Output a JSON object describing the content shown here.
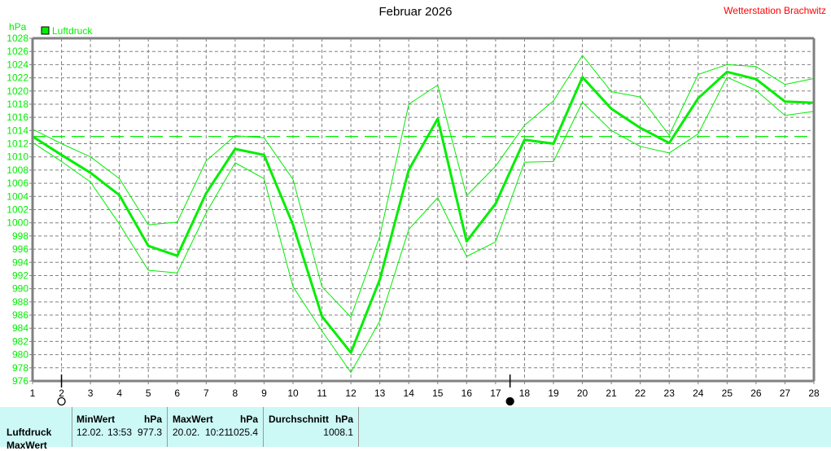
{
  "header": {
    "title": "Februar 2026",
    "station": "Wetterstation Brachwitz"
  },
  "colors": {
    "series": "#00ee00",
    "axis": "#808080",
    "grid": "#808080",
    "station": "#ff0000",
    "stats_bg": "#ccf8f6"
  },
  "chart_data": {
    "type": "line",
    "title": "Februar 2026",
    "xlabel": "",
    "ylabel": "hPa",
    "ylim": [
      976,
      1028
    ],
    "yticks": [
      976,
      978,
      980,
      982,
      984,
      986,
      988,
      990,
      992,
      994,
      996,
      998,
      1000,
      1002,
      1004,
      1006,
      1008,
      1010,
      1012,
      1014,
      1016,
      1018,
      1020,
      1022,
      1024,
      1026,
      1028
    ],
    "x": [
      1,
      2,
      3,
      4,
      5,
      6,
      7,
      8,
      9,
      10,
      11,
      12,
      13,
      14,
      15,
      16,
      17,
      18,
      19,
      20,
      21,
      22,
      23,
      24,
      25,
      26,
      27,
      28
    ],
    "legend": [
      "Luftdruck"
    ],
    "legend_position": "top-left",
    "grid": true,
    "reference_line": 1013.1,
    "series": [
      {
        "name": "Luftdruck",
        "role": "mean",
        "values": [
          1013.1,
          1010.3,
          1007.6,
          1004.2,
          996.5,
          995.0,
          1004.5,
          1011.2,
          1010.3,
          999.7,
          985.8,
          980.3,
          991.4,
          1008.0,
          1015.8,
          997.2,
          1002.9,
          1012.6,
          1012.0,
          1022.1,
          1017.3,
          1014.4,
          1012.1,
          1018.9,
          1022.9,
          1021.8,
          1018.4,
          1018.2
        ]
      },
      {
        "name": "Luftdruck Max",
        "role": "max",
        "values": [
          1014.2,
          1012.0,
          1010.0,
          1006.7,
          999.7,
          1000.1,
          1009.4,
          1013.2,
          1012.9,
          1006.6,
          990.3,
          985.7,
          998.0,
          1018.0,
          1020.9,
          1004.1,
          1008.6,
          1014.8,
          1018.5,
          1025.4,
          1019.9,
          1019.1,
          1013.3,
          1022.5,
          1024.0,
          1023.7,
          1021.0,
          1021.9
        ]
      },
      {
        "name": "Luftdruck Min",
        "role": "min",
        "values": [
          1012.2,
          1009.3,
          1006.2,
          999.8,
          992.8,
          992.4,
          1001.5,
          1009.1,
          1006.7,
          990.3,
          983.6,
          977.3,
          985.1,
          999.0,
          1003.8,
          994.9,
          997.1,
          1009.2,
          1009.3,
          1018.3,
          1014.0,
          1011.6,
          1010.6,
          1013.5,
          1022.1,
          1020.1,
          1016.3,
          1016.9
        ]
      }
    ],
    "markers": [
      {
        "x": 2,
        "symbol": "new-moon-open-circle"
      },
      {
        "x": 17.5,
        "symbol": "full-moon-filled-circle"
      }
    ]
  },
  "stats": {
    "row_label": "Luftdruck",
    "row_label_2": "MaxWert",
    "min": {
      "label": "MinWert",
      "unit": "hPa",
      "date": "12.02.",
      "time": "13:53",
      "value": "977.3"
    },
    "max": {
      "label": "MaxWert",
      "unit": "hPa",
      "date": "20.02.",
      "time": "10:21",
      "value": "1025.4"
    },
    "avg": {
      "label": "Durchschnitt",
      "unit": "hPa",
      "value": "1008.1"
    }
  }
}
